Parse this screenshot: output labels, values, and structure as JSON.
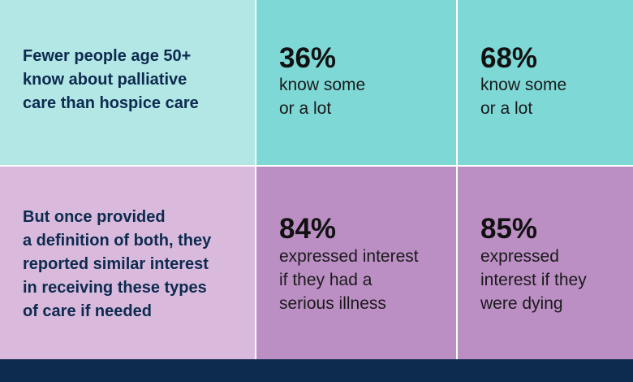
{
  "rows": [
    {
      "heading": [
        "Fewer people age 50+",
        "know about palliative",
        "care than hospice care"
      ],
      "cells": [
        {
          "stat": "36%",
          "text": [
            "know some",
            "or a lot"
          ]
        },
        {
          "stat": "68%",
          "text": [
            "know some",
            "or a lot"
          ]
        }
      ]
    },
    {
      "heading": [
        "But once provided",
        "a definition of both, they",
        "reported similar interest",
        "in receiving these types",
        "of care if needed"
      ],
      "cells": [
        {
          "stat": "84%",
          "text": [
            "expressed interest",
            "if they had a",
            "serious illness"
          ]
        },
        {
          "stat": "85%",
          "text": [
            "expressed",
            "interest if they",
            "were dying"
          ]
        }
      ]
    }
  ]
}
